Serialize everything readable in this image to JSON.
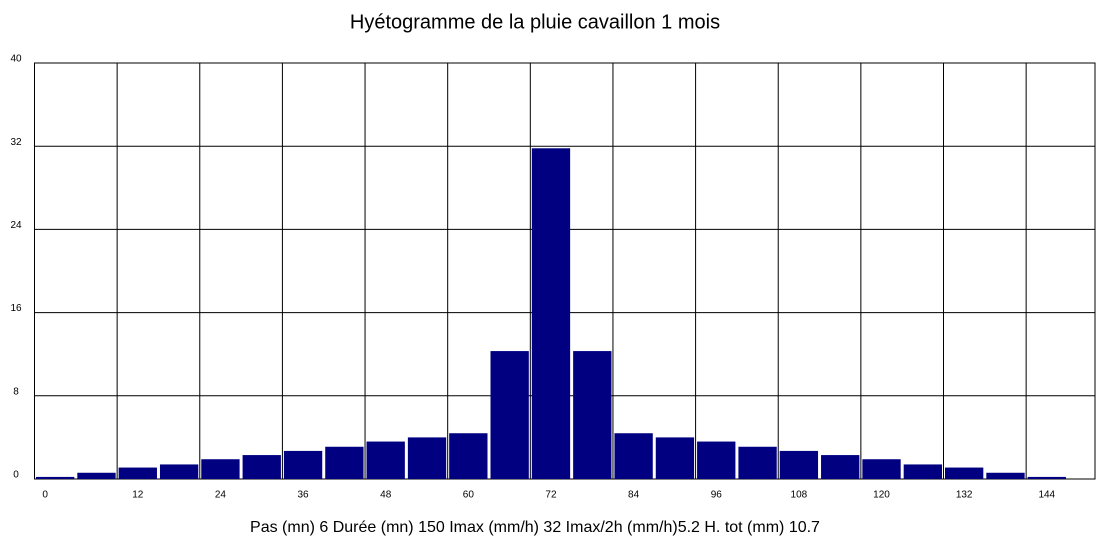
{
  "chart_data": {
    "type": "histogram",
    "title": "Hyétogramme de la pluie  cavaillon 1 mois",
    "xlabel": "Pas (mn)  6 Durée (mn)  150 Imax (mm/h)  32 Imax/2h (mm/h)5.2 H. tot (mm) 10.7",
    "bins": [
      0,
      6,
      12,
      18,
      24,
      30,
      36,
      42,
      48,
      54,
      60,
      66,
      72,
      78,
      84,
      90,
      96,
      102,
      108,
      114,
      120,
      126,
      132,
      138,
      144,
      150
    ],
    "values": [
      0.2,
      0.6,
      1.1,
      1.4,
      1.9,
      2.3,
      2.7,
      3.1,
      3.6,
      4.0,
      4.4,
      12.3,
      31.8,
      12.3,
      4.4,
      4.0,
      3.6,
      3.1,
      2.7,
      2.3,
      1.9,
      1.4,
      1.1,
      0.6,
      0.2
    ],
    "color": "#000080",
    "xlim": [
      0,
      154
    ],
    "xticks": [
      0,
      12,
      24,
      36,
      48,
      60,
      72,
      84,
      96,
      108,
      120,
      132,
      144
    ],
    "ylim": [
      0,
      40
    ],
    "yticks": [
      0,
      8,
      16,
      24,
      32,
      40
    ],
    "grid": true
  }
}
